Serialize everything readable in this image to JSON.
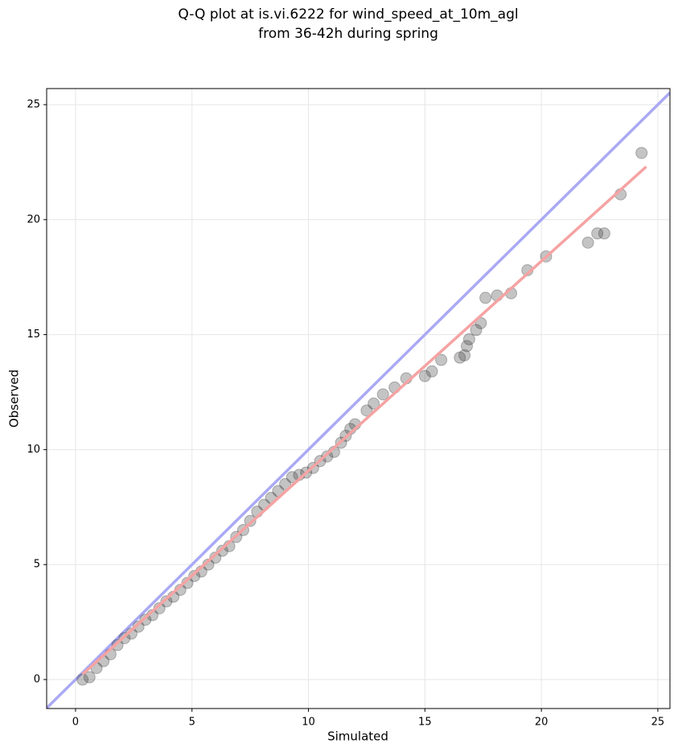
{
  "chart_data": {
    "type": "scatter",
    "title": [
      "Q-Q plot at is.vi.6222 for wind_speed_at_10m_agl",
      "from 36-42h during spring"
    ],
    "x_label": "Simulated",
    "y_label": "Observed",
    "xlim": [
      -1.24,
      25.52
    ],
    "ylim": [
      -1.26,
      25.7
    ],
    "xticks": [
      0,
      5,
      10,
      15,
      20,
      25
    ],
    "yticks": [
      0,
      5,
      10,
      15,
      20,
      25
    ],
    "grid": true,
    "series": [
      {
        "color": "#3a3a3a",
        "x": [
          0.3,
          0.6,
          0.9,
          1.2,
          1.5,
          1.8,
          2.1,
          2.4,
          2.7,
          3.0,
          3.3,
          3.6,
          3.9,
          4.2,
          4.5,
          4.8,
          5.1,
          5.4,
          5.7,
          6.0,
          6.3,
          6.6,
          6.9,
          7.2,
          7.5,
          7.8,
          8.1,
          8.4,
          8.7,
          9.0,
          9.3,
          9.6,
          9.9,
          10.2,
          10.5,
          10.8,
          11.1,
          11.4,
          11.6,
          11.8,
          12.0,
          12.5,
          12.8,
          13.2,
          13.7,
          14.2,
          15.0,
          15.3,
          15.7,
          16.5,
          16.7,
          16.8,
          16.9,
          17.2,
          17.4,
          17.6,
          18.1,
          18.7,
          19.4,
          20.2,
          22.0,
          22.4,
          22.7,
          23.4,
          24.3
        ],
        "values": [
          0.0,
          0.1,
          0.5,
          0.8,
          1.1,
          1.5,
          1.8,
          2.0,
          2.3,
          2.6,
          2.8,
          3.1,
          3.4,
          3.6,
          3.9,
          4.2,
          4.5,
          4.7,
          5.0,
          5.3,
          5.6,
          5.8,
          6.2,
          6.5,
          6.9,
          7.3,
          7.6,
          7.9,
          8.2,
          8.5,
          8.8,
          8.9,
          9.0,
          9.2,
          9.5,
          9.7,
          9.9,
          10.3,
          10.6,
          10.9,
          11.1,
          11.7,
          12.0,
          12.4,
          12.7,
          13.1,
          13.2,
          13.4,
          13.9,
          14.0,
          14.1,
          14.5,
          14.8,
          15.2,
          15.5,
          16.6,
          16.7,
          16.8,
          17.8,
          18.4,
          19.0,
          19.4,
          19.4,
          21.1,
          22.9
        ]
      }
    ],
    "lines": [
      {
        "color": "#a9a9f4",
        "x": [
          -1.24,
          25.52
        ],
        "values": [
          -1.24,
          25.52
        ]
      },
      {
        "color": "#f5a3a3",
        "x": [
          0.3,
          24.5
        ],
        "values": [
          0.23,
          22.3
        ]
      }
    ]
  }
}
